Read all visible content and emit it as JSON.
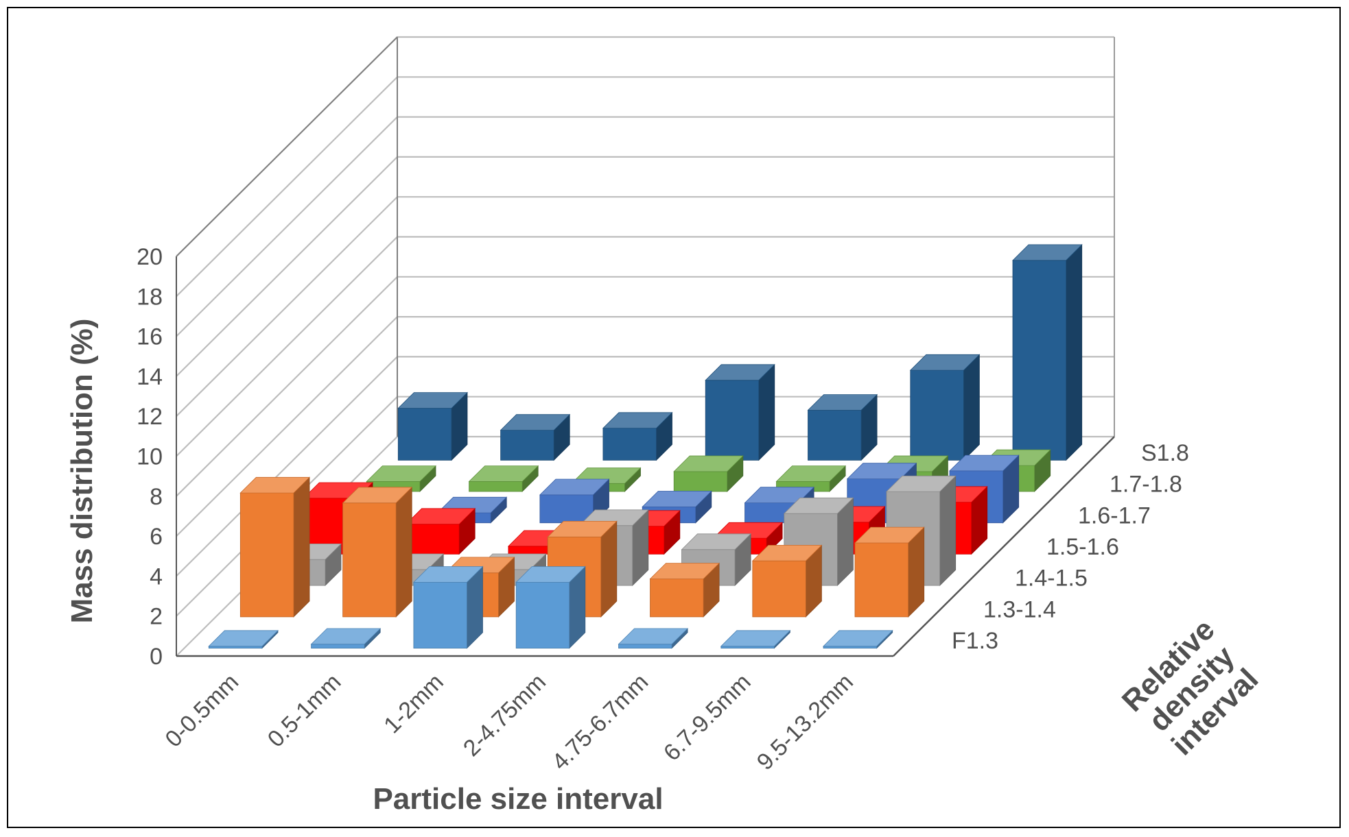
{
  "chart_data": {
    "type": "bar3d",
    "title": "",
    "xlabel": "Particle size interval",
    "ylabel": "Mass distribution (%)",
    "zlabel_lines": [
      "Relative",
      "density",
      "interval"
    ],
    "ylim": [
      0,
      20
    ],
    "ytick_step": 2,
    "categories": [
      "0-0.5mm",
      "0.5-1mm",
      "1-2mm",
      "2-4.75mm",
      "4.75-6.7mm",
      "6.7-9.5mm",
      "9.5-13.2mm"
    ],
    "series": [
      {
        "name": "F1.3",
        "color": "#5B9BD5",
        "values": [
          0.1,
          0.2,
          3.3,
          3.3,
          0.2,
          0.1,
          0.1
        ]
      },
      {
        "name": "1.3-1.4",
        "color": "#ED7D31",
        "values": [
          6.2,
          5.7,
          2.2,
          4.0,
          1.9,
          2.8,
          3.7
        ]
      },
      {
        "name": "1.4-1.5",
        "color": "#A5A5A5",
        "values": [
          1.3,
          0.8,
          0.8,
          3.0,
          1.8,
          3.6,
          4.7
        ]
      },
      {
        "name": "1.5-1.6",
        "color": "#FF0000",
        "values": [
          2.8,
          1.5,
          0.4,
          1.4,
          0.8,
          1.6,
          2.6
        ]
      },
      {
        "name": "1.6-1.7",
        "color": "#4472C4",
        "values": [
          0.5,
          0.5,
          1.4,
          0.8,
          1.0,
          2.2,
          2.6
        ]
      },
      {
        "name": "1.7-1.8",
        "color": "#70AD47",
        "values": [
          0.5,
          0.5,
          0.4,
          1.0,
          0.5,
          1.0,
          1.3
        ]
      },
      {
        "name": "S1.8",
        "color": "#255E91",
        "values": [
          2.6,
          1.5,
          1.6,
          4.0,
          2.5,
          4.5,
          10.0
        ]
      }
    ]
  }
}
